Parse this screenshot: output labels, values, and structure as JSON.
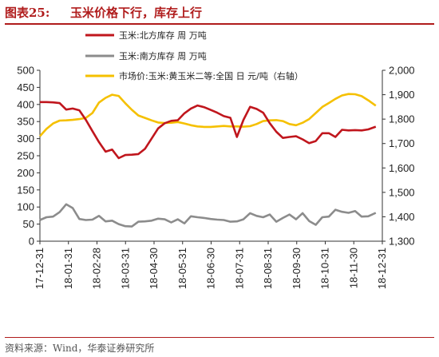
{
  "header": {
    "figure_label": "图表25:",
    "figure_title": "玉米价格下行，库存上行"
  },
  "footer": {
    "source": "资料来源：Wind，华泰证券研究所"
  },
  "colors": {
    "north": "#c0161d",
    "south": "#8c8c8c",
    "price": "#f5c000",
    "accent": "#b01c1c"
  },
  "chart_data": {
    "type": "line",
    "title": "",
    "legend_position": "top",
    "grid": false,
    "x_labels": [
      "17-12-31",
      "18-01-31",
      "18-02-28",
      "18-03-31",
      "18-04-30",
      "18-05-31",
      "18-06-30",
      "18-07-31",
      "18-08-31",
      "18-09-30",
      "18-10-31",
      "18-11-30",
      "18-12-31"
    ],
    "x_range": [
      "2017-12-31",
      "2018-12-31"
    ],
    "y_left": {
      "min": 0,
      "max": 500,
      "ticks": [
        "0",
        "50",
        "100",
        "150",
        "200",
        "250",
        "300",
        "350",
        "400",
        "450",
        "500"
      ]
    },
    "y_right": {
      "min": 1300,
      "max": 2000,
      "ticks": [
        "1,300",
        "1,400",
        "1,500",
        "1,600",
        "1,700",
        "1,800",
        "1,900",
        "2,000"
      ]
    },
    "series": [
      {
        "name": "玉米:北方库存 周 万吨",
        "axis": "left",
        "color": "#c0161d",
        "points": [
          [
            "2017-12-31",
            407
          ],
          [
            "2018-01-07",
            407
          ],
          [
            "2018-01-14",
            406
          ],
          [
            "2018-01-21",
            404
          ],
          [
            "2018-01-28",
            385
          ],
          [
            "2018-02-04",
            388
          ],
          [
            "2018-02-11",
            383
          ],
          [
            "2018-02-18",
            355
          ],
          [
            "2018-02-25",
            322
          ],
          [
            "2018-03-04",
            290
          ],
          [
            "2018-03-11",
            262
          ],
          [
            "2018-03-18",
            268
          ],
          [
            "2018-03-25",
            243
          ],
          [
            "2018-04-01",
            252
          ],
          [
            "2018-04-08",
            253
          ],
          [
            "2018-04-15",
            255
          ],
          [
            "2018-04-22",
            270
          ],
          [
            "2018-04-29",
            300
          ],
          [
            "2018-05-06",
            330
          ],
          [
            "2018-05-13",
            345
          ],
          [
            "2018-05-20",
            352
          ],
          [
            "2018-05-27",
            354
          ],
          [
            "2018-06-03",
            374
          ],
          [
            "2018-06-10",
            388
          ],
          [
            "2018-06-17",
            397
          ],
          [
            "2018-06-24",
            392
          ],
          [
            "2018-07-01",
            384
          ],
          [
            "2018-07-08",
            376
          ],
          [
            "2018-07-15",
            366
          ],
          [
            "2018-07-22",
            361
          ],
          [
            "2018-07-29",
            305
          ],
          [
            "2018-08-05",
            355
          ],
          [
            "2018-08-12",
            393
          ],
          [
            "2018-08-19",
            387
          ],
          [
            "2018-08-26",
            376
          ],
          [
            "2018-09-02",
            345
          ],
          [
            "2018-09-09",
            320
          ],
          [
            "2018-09-16",
            302
          ],
          [
            "2018-09-23",
            305
          ],
          [
            "2018-09-30",
            307
          ],
          [
            "2018-10-07",
            298
          ],
          [
            "2018-10-14",
            287
          ],
          [
            "2018-10-21",
            293
          ],
          [
            "2018-10-28",
            316
          ],
          [
            "2018-11-04",
            316
          ],
          [
            "2018-11-11",
            305
          ],
          [
            "2018-11-18",
            326
          ],
          [
            "2018-11-25",
            324
          ],
          [
            "2018-12-02",
            325
          ],
          [
            "2018-12-09",
            324
          ],
          [
            "2018-12-16",
            327
          ],
          [
            "2018-12-24",
            335
          ]
        ]
      },
      {
        "name": "玉米:南方库存 周 万吨",
        "axis": "left",
        "color": "#8c8c8c",
        "points": [
          [
            "2017-12-31",
            62
          ],
          [
            "2018-01-07",
            70
          ],
          [
            "2018-01-14",
            72
          ],
          [
            "2018-01-21",
            85
          ],
          [
            "2018-01-28",
            108
          ],
          [
            "2018-02-04",
            97
          ],
          [
            "2018-02-11",
            65
          ],
          [
            "2018-02-18",
            62
          ],
          [
            "2018-02-25",
            63
          ],
          [
            "2018-03-04",
            74
          ],
          [
            "2018-03-11",
            58
          ],
          [
            "2018-03-18",
            60
          ],
          [
            "2018-03-25",
            50
          ],
          [
            "2018-04-01",
            44
          ],
          [
            "2018-04-08",
            43
          ],
          [
            "2018-04-15",
            57
          ],
          [
            "2018-04-22",
            58
          ],
          [
            "2018-04-29",
            60
          ],
          [
            "2018-05-06",
            66
          ],
          [
            "2018-05-13",
            64
          ],
          [
            "2018-05-20",
            55
          ],
          [
            "2018-05-27",
            64
          ],
          [
            "2018-06-03",
            52
          ],
          [
            "2018-06-10",
            73
          ],
          [
            "2018-06-17",
            70
          ],
          [
            "2018-06-24",
            68
          ],
          [
            "2018-07-01",
            65
          ],
          [
            "2018-07-08",
            63
          ],
          [
            "2018-07-15",
            62
          ],
          [
            "2018-07-22",
            57
          ],
          [
            "2018-07-29",
            58
          ],
          [
            "2018-08-05",
            64
          ],
          [
            "2018-08-12",
            82
          ],
          [
            "2018-08-19",
            74
          ],
          [
            "2018-08-26",
            70
          ],
          [
            "2018-09-02",
            78
          ],
          [
            "2018-09-09",
            57
          ],
          [
            "2018-09-16",
            68
          ],
          [
            "2018-09-23",
            78
          ],
          [
            "2018-09-30",
            64
          ],
          [
            "2018-10-07",
            82
          ],
          [
            "2018-10-14",
            59
          ],
          [
            "2018-10-21",
            48
          ],
          [
            "2018-10-28",
            70
          ],
          [
            "2018-11-04",
            72
          ],
          [
            "2018-11-11",
            92
          ],
          [
            "2018-11-18",
            86
          ],
          [
            "2018-11-25",
            83
          ],
          [
            "2018-12-02",
            88
          ],
          [
            "2018-12-09",
            72
          ],
          [
            "2018-12-16",
            73
          ],
          [
            "2018-12-24",
            83
          ]
        ]
      },
      {
        "name": "市场价:玉米:黄玉米二等:全国 日 元/吨（右轴）",
        "axis": "right",
        "color": "#f5c000",
        "points": [
          [
            "2017-12-31",
            1730
          ],
          [
            "2018-01-07",
            1760
          ],
          [
            "2018-01-14",
            1782
          ],
          [
            "2018-01-21",
            1794
          ],
          [
            "2018-01-28",
            1795
          ],
          [
            "2018-02-04",
            1797
          ],
          [
            "2018-02-11",
            1800
          ],
          [
            "2018-02-18",
            1805
          ],
          [
            "2018-02-25",
            1825
          ],
          [
            "2018-03-04",
            1868
          ],
          [
            "2018-03-11",
            1887
          ],
          [
            "2018-03-18",
            1900
          ],
          [
            "2018-03-25",
            1895
          ],
          [
            "2018-04-01",
            1865
          ],
          [
            "2018-04-08",
            1838
          ],
          [
            "2018-04-15",
            1815
          ],
          [
            "2018-04-22",
            1805
          ],
          [
            "2018-04-29",
            1795
          ],
          [
            "2018-05-06",
            1786
          ],
          [
            "2018-05-13",
            1784
          ],
          [
            "2018-05-20",
            1785
          ],
          [
            "2018-05-27",
            1788
          ],
          [
            "2018-06-03",
            1782
          ],
          [
            "2018-06-10",
            1775
          ],
          [
            "2018-06-17",
            1770
          ],
          [
            "2018-06-24",
            1768
          ],
          [
            "2018-07-01",
            1768
          ],
          [
            "2018-07-08",
            1770
          ],
          [
            "2018-07-15",
            1772
          ],
          [
            "2018-07-22",
            1770
          ],
          [
            "2018-07-29",
            1770
          ],
          [
            "2018-08-05",
            1769
          ],
          [
            "2018-08-12",
            1771
          ],
          [
            "2018-08-19",
            1780
          ],
          [
            "2018-08-26",
            1792
          ],
          [
            "2018-09-02",
            1795
          ],
          [
            "2018-09-09",
            1796
          ],
          [
            "2018-09-16",
            1792
          ],
          [
            "2018-09-23",
            1780
          ],
          [
            "2018-09-30",
            1775
          ],
          [
            "2018-10-07",
            1785
          ],
          [
            "2018-10-14",
            1800
          ],
          [
            "2018-10-21",
            1825
          ],
          [
            "2018-10-28",
            1850
          ],
          [
            "2018-11-04",
            1866
          ],
          [
            "2018-11-11",
            1883
          ],
          [
            "2018-11-18",
            1897
          ],
          [
            "2018-11-25",
            1903
          ],
          [
            "2018-12-02",
            1902
          ],
          [
            "2018-12-09",
            1894
          ],
          [
            "2018-12-16",
            1877
          ],
          [
            "2018-12-24",
            1855
          ]
        ]
      }
    ]
  }
}
